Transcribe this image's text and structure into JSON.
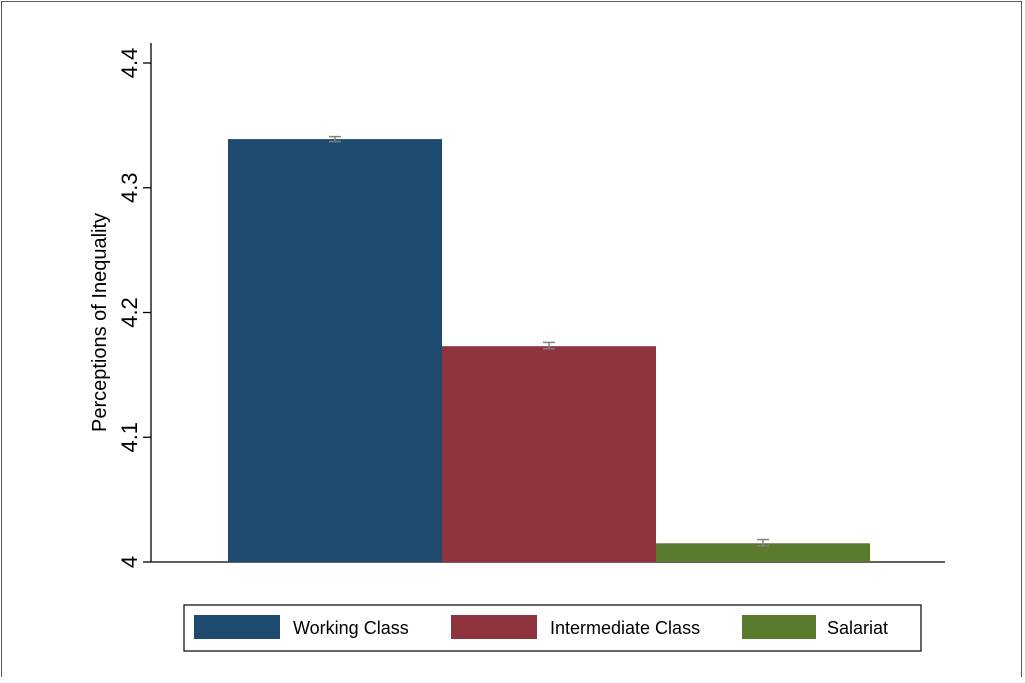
{
  "chart_data": {
    "type": "bar",
    "title": "",
    "xlabel": "",
    "ylabel": "Perceptions of Inequality",
    "ylim": [
      4.0,
      4.4
    ],
    "yticks": [
      "4",
      "4.1",
      "4.2",
      "4.3",
      "4.4"
    ],
    "ytick_values": [
      4.0,
      4.1,
      4.2,
      4.3,
      4.4
    ],
    "grid": false,
    "legend_position": "bottom",
    "series": [
      {
        "name": "Working Class",
        "value": 4.339,
        "err_low": 4.337,
        "err_high": 4.341,
        "color": "#1f4a6f"
      },
      {
        "name": "Intermediate Class",
        "value": 4.173,
        "err_low": 4.171,
        "err_high": 4.176,
        "color": "#8f343e"
      },
      {
        "name": "Salariat",
        "value": 4.015,
        "err_low": 4.013,
        "err_high": 4.018,
        "color": "#5a7a2e"
      }
    ],
    "error_bar_color": "#808080"
  }
}
